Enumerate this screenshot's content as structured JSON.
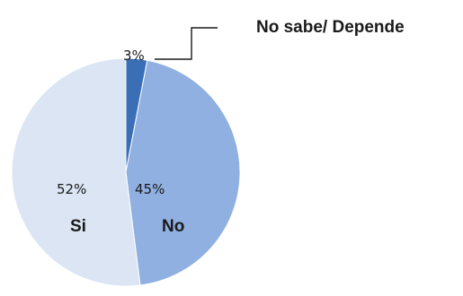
{
  "chart_data": {
    "type": "pie",
    "slices": [
      {
        "label": "No sabe/ Depende",
        "value": 3,
        "value_label": "3%",
        "color": "#3a6fb5"
      },
      {
        "label": "No",
        "value": 45,
        "value_label": "45%",
        "color": "#8fb0e0"
      },
      {
        "label": "Si",
        "value": 52,
        "value_label": "52%",
        "color": "#dbe5f3"
      }
    ],
    "start_angle_deg": 0,
    "direction": "clockwise",
    "legend": "none"
  }
}
